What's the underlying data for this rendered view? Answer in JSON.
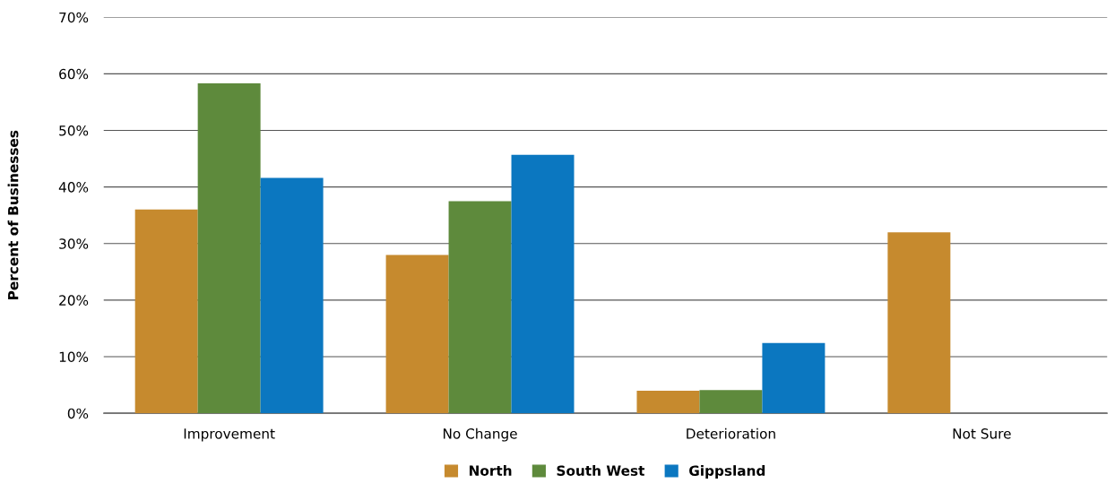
{
  "chart_data": {
    "type": "bar",
    "ylabel": "Percent of Businesses",
    "categories": [
      "Improvement",
      "No Change",
      "Deterioration",
      "Not Sure"
    ],
    "series": [
      {
        "name": "North",
        "color": "#c68a2e",
        "values": [
          36,
          28,
          4,
          32
        ]
      },
      {
        "name": "South West",
        "color": "#5e8a3c",
        "values": [
          58.3,
          37.5,
          4.1,
          null
        ]
      },
      {
        "name": "Gippsland",
        "color": "#0b77c0",
        "values": [
          41.6,
          45.7,
          12.4,
          null
        ]
      }
    ],
    "ylim": [
      0,
      70
    ],
    "yticks": [
      {
        "value": 0,
        "label": "0%"
      },
      {
        "value": 10,
        "label": "10%"
      },
      {
        "value": 20,
        "label": "20%"
      },
      {
        "value": 30,
        "label": "30%"
      },
      {
        "value": 40,
        "label": "40%"
      },
      {
        "value": 50,
        "label": "50%"
      },
      {
        "value": 60,
        "label": "60%"
      },
      {
        "value": 70,
        "label": "70%"
      }
    ],
    "grid": "y",
    "legend": "bottom"
  }
}
